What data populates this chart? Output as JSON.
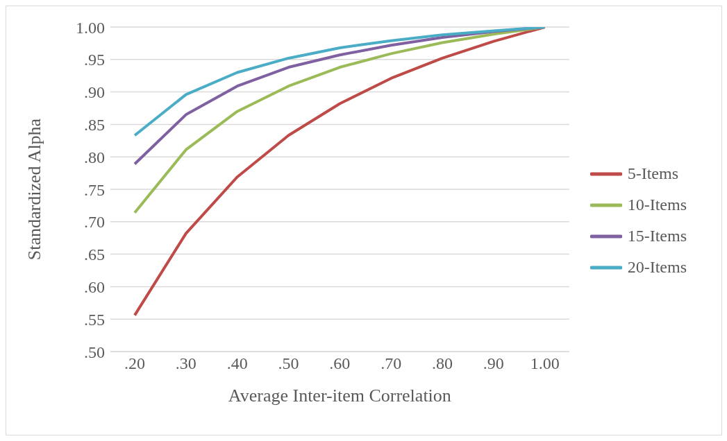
{
  "chart_data": {
    "type": "line",
    "xlabel": "Average Inter-item Correlation",
    "ylabel": "Standardized Alpha",
    "categories": [
      ".20",
      ".30",
      ".40",
      ".50",
      ".60",
      ".70",
      ".80",
      ".90",
      "1.00"
    ],
    "series": [
      {
        "name": "5-Items",
        "color": "#be4b48",
        "values": [
          0.556,
          0.682,
          0.769,
          0.833,
          0.882,
          0.921,
          0.952,
          0.978,
          1.0
        ]
      },
      {
        "name": "10-Items",
        "color": "#9bbb59",
        "values": [
          0.714,
          0.811,
          0.87,
          0.909,
          0.938,
          0.959,
          0.976,
          0.989,
          1.0
        ]
      },
      {
        "name": "15-Items",
        "color": "#7f60a0",
        "values": [
          0.789,
          0.865,
          0.909,
          0.938,
          0.957,
          0.972,
          0.984,
          0.993,
          1.0
        ]
      },
      {
        "name": "20-Items",
        "color": "#4bacc6",
        "values": [
          0.833,
          0.896,
          0.93,
          0.952,
          0.968,
          0.979,
          0.988,
          0.994,
          1.0
        ]
      }
    ],
    "ylim": [
      0.5,
      1.0
    ],
    "yticks": [
      {
        "value": 0.5,
        "label": ".50"
      },
      {
        "value": 0.55,
        "label": ".55"
      },
      {
        "value": 0.6,
        "label": ".60"
      },
      {
        "value": 0.65,
        "label": ".65"
      },
      {
        "value": 0.7,
        "label": ".70"
      },
      {
        "value": 0.75,
        "label": ".75"
      },
      {
        "value": 0.8,
        "label": ".80"
      },
      {
        "value": 0.85,
        "label": ".85"
      },
      {
        "value": 0.9,
        "label": ".90"
      },
      {
        "value": 0.95,
        "label": ".95"
      },
      {
        "value": 1.0,
        "label": "1.00"
      }
    ],
    "grid": "y",
    "legend": "right",
    "marker": "none",
    "line_style": "solid"
  }
}
